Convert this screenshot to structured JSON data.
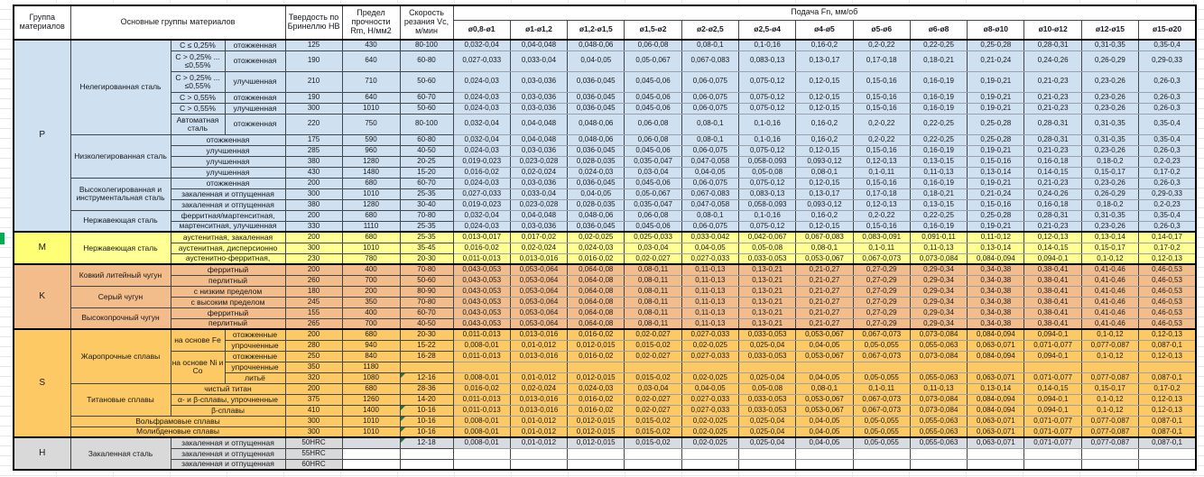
{
  "sheet": {
    "header": {
      "group_col": "Группа материалов",
      "main_col": "Основные группы материалов",
      "hardness_col": "Твердость по Бринеллю НВ",
      "strength_col": "Предел прочности Rm, Н/мм2",
      "speed_col": "Скорость резания Vc, м/мин",
      "feed_title": "Подача Fn, мм/об",
      "diameters": [
        "ø0,8-ø1",
        "ø1-ø1,2",
        "ø1,2-ø1,5",
        "ø1,5-ø2",
        "ø2-ø2,5",
        "ø2,5-ø4",
        "ø4-ø5",
        "ø5-ø6",
        "ø6-ø8",
        "ø8-ø10",
        "ø10-ø12",
        "ø12-ø15",
        "ø15-ø20"
      ]
    },
    "colors": {
      "group_p_fill": "#cfe0f0",
      "group_m_fill": "#ffff94",
      "group_k_fill": "#f3bc8b",
      "group_s_fill": "#fdc964",
      "group_h_label_fill": "#d9d9d9",
      "group_h_row_fill": "#d8dbdf",
      "margin_green_cell": "#00b050",
      "error_indicator": "#1e7145",
      "border": "#000000"
    },
    "feed_series": {
      "A": [
        "0,032-0,04",
        "0,04-0,048",
        "0,048-0,06",
        "0,06-0,08",
        "0,08-0,1",
        "0,1-0,16",
        "0,16-0,2",
        "0,2-0,22",
        "0,22-0,25",
        "0,25-0,28",
        "0,28-0,31",
        "0,31-0,35",
        "0,35-0,4"
      ],
      "B": [
        "0,027-0,033",
        "0,033-0,04",
        "0,04-0,05",
        "0,05-0,067",
        "0,067-0,083",
        "0,083-0,13",
        "0,13-0,17",
        "0,17-0,18",
        "0,18-0,21",
        "0,21-0,24",
        "0,24-0,26",
        "0,26-0,29",
        "0,29-0,33"
      ],
      "C": [
        "0,024-0,03",
        "0,03-0,036",
        "0,036-0,045",
        "0,045-0,06",
        "0,06-0,075",
        "0,075-0,12",
        "0,12-0,15",
        "0,15-0,16",
        "0,16-0,19",
        "0,19-0,21",
        "0,21-0,23",
        "0,23-0,26",
        "0,26-0,3"
      ],
      "D": [
        "0,019-0,023",
        "0,023-0,028",
        "0,028-0,035",
        "0,035-0,047",
        "0,047-0,058",
        "0,058-0,093",
        "0,093-0,12",
        "0,12-0,13",
        "0,13-0,15",
        "0,15-0,16",
        "0,16-0,18",
        "0,18-0,2",
        "0,2-0,23"
      ],
      "E": [
        "0,016-0,02",
        "0,02-0,024",
        "0,024-0,03",
        "0,03-0,04",
        "0,04-0,05",
        "0,05-0,08",
        "0,08-0,1",
        "0,1-0,11",
        "0,11-0,13",
        "0,13-0,14",
        "0,14-0,15",
        "0,15-0,17",
        "0,17-0,2"
      ],
      "F": [
        "0,013-0,017",
        "0,017-0,02",
        "0,02-0,025",
        "0,025-0,033",
        "0,033-0,042",
        "0,042-0,067",
        "0,067-0,083",
        "0,083-0,091",
        "0,091-0,11",
        "0,11-0,12",
        "0,12-0,13",
        "0,13-0,14",
        "0,14-0,17"
      ],
      "G": [
        "0,011-0,013",
        "0,013-0,016",
        "0,016-0,02",
        "0,02-0,027",
        "0,027-0,033",
        "0,033-0,053",
        "0,053-0,067",
        "0,067-0,073",
        "0,073-0,084",
        "0,084-0,094",
        "0,094-0,1",
        "0,1-0,12",
        "0,12-0,13"
      ],
      "CI": [
        "0,043-0,053",
        "0,053-0,064",
        "0,064-0,08",
        "0,08-0,11",
        "0,11-0,13",
        "0,13-0,21",
        "0,21-0,27",
        "0,27-0,29",
        "0,29-0,34",
        "0,34-0,38",
        "0,38-0,41",
        "0,41-0,46",
        "0,46-0,53"
      ],
      "I": [
        "0,008-0,01",
        "0,01-0,012",
        "0,012-0,015",
        "0,015-0,02",
        "0,02-0,025",
        "0,025-0,04",
        "0,04-0,05",
        "0,05-0,055",
        "0,055-0,063",
        "0,063-0,071",
        "0,071-0,077",
        "0,077-0,087",
        "0,087-0,1"
      ],
      "EMPTY": [
        "",
        "",
        "",
        "",
        "",
        "",
        "",
        "",
        "",
        "",
        "",
        "",
        ""
      ]
    },
    "groups": [
      {
        "id": "P",
        "label": "P",
        "sections": [
          {
            "main": "Нелегированная сталь",
            "rows": [
              {
                "sub1": "C ≤ 0,25%",
                "sub2": "отожженная",
                "hb": "125",
                "rm": "430",
                "vc": "80-100",
                "feeds": "A"
              },
              {
                "sub1": "C > 0,25% ... ≤0,55%",
                "sub2": "отожженная",
                "hb": "190",
                "rm": "640",
                "vc": "60-80",
                "feeds": "B",
                "tall": true
              },
              {
                "sub1": "C > 0,25% ... ≤0,55%",
                "sub2": "улучшенная",
                "hb": "210",
                "rm": "710",
                "vc": "50-60",
                "feeds": "C",
                "tall": true
              },
              {
                "sub1": "C > 0,55%",
                "sub2": "отожженная",
                "hb": "190",
                "rm": "640",
                "vc": "60-70",
                "feeds": "C"
              },
              {
                "sub1": "C > 0,55%",
                "sub2": "улучшенная",
                "hb": "300",
                "rm": "1010",
                "vc": "50-60",
                "feeds": "C"
              },
              {
                "sub1": "Автоматная сталь",
                "sub2": "отожженная",
                "hb": "220",
                "rm": "750",
                "vc": "80-100",
                "feeds": "A",
                "tall": true
              }
            ]
          },
          {
            "main": "Низколегированная сталь",
            "rows": [
              {
                "sub": "отожженная",
                "hb": "175",
                "rm": "590",
                "vc": "60-80",
                "feeds": "A"
              },
              {
                "sub": "улучшенная",
                "hb": "285",
                "rm": "960",
                "vc": "40-50",
                "feeds": "C"
              },
              {
                "sub": "улучшенная",
                "hb": "380",
                "rm": "1280",
                "vc": "20-25",
                "feeds": "D"
              },
              {
                "sub": "улучшенная",
                "hb": "430",
                "rm": "1480",
                "vc": "15-20",
                "feeds": "E"
              }
            ]
          },
          {
            "main": "Высоколегированная и инструментальная сталь",
            "rows": [
              {
                "sub": "отожженная",
                "hb": "200",
                "rm": "680",
                "vc": "60-70",
                "feeds": "C"
              },
              {
                "sub": "закаленная и отпущенная",
                "hb": "300",
                "rm": "1010",
                "vc": "25-35",
                "feeds": "B"
              },
              {
                "sub": "закаленная и отпущенная",
                "hb": "380",
                "rm": "1280",
                "vc": "30-40",
                "feeds": "D"
              }
            ]
          },
          {
            "main": "Нержавеющая сталь",
            "rows": [
              {
                "sub": "ферритная/мартенситная,",
                "hb": "200",
                "rm": "680",
                "vc": "70-80",
                "feeds": "A"
              },
              {
                "sub": "мартенситная, улучшенная",
                "hb": "330",
                "rm": "1110",
                "vc": "25-35",
                "feeds": "C"
              }
            ]
          }
        ]
      },
      {
        "id": "M",
        "label": "M",
        "sections": [
          {
            "main": "Нержавеющая сталь",
            "rows": [
              {
                "sub": "аустенитная, закаленная",
                "hb": "200",
                "rm": "680",
                "vc": "25-35",
                "feeds": "F"
              },
              {
                "sub": "аустенитная, дисперсионно",
                "hb": "300",
                "rm": "1010",
                "vc": "35-45",
                "feeds": "E"
              },
              {
                "sub": "аустенитно-ферритная,",
                "hb": "230",
                "rm": "780",
                "vc": "20-30",
                "feeds": "G"
              }
            ]
          }
        ]
      },
      {
        "id": "K",
        "label": "K",
        "sections": [
          {
            "main": "Ковкий литейный чугун",
            "rows": [
              {
                "sub": "ферритный",
                "hb": "200",
                "rm": "400",
                "vc": "70-80",
                "feeds": "CI"
              },
              {
                "sub": "перлитный",
                "hb": "260",
                "rm": "700",
                "vc": "50-60",
                "feeds": "CI"
              }
            ]
          },
          {
            "main": "Серый чугун",
            "rows": [
              {
                "sub": "с низким пределом",
                "hb": "180",
                "rm": "200",
                "vc": "80-90",
                "feeds": "CI"
              },
              {
                "sub": "с высоким пределом",
                "hb": "245",
                "rm": "350",
                "vc": "70-80",
                "feeds": "CI"
              }
            ]
          },
          {
            "main": "Высокопрочный чугун",
            "rows": [
              {
                "sub": "ферритный",
                "hb": "155",
                "rm": "400",
                "vc": "60-70",
                "feeds": "CI"
              },
              {
                "sub": "перлитный",
                "hb": "265",
                "rm": "700",
                "vc": "40-50",
                "feeds": "CI"
              }
            ]
          }
        ]
      },
      {
        "id": "S",
        "label": "S",
        "sections": [
          {
            "main": "Жаропрочные сплавы",
            "rows": [
              {
                "sub1": "на основе Fe",
                "sub1span": 2,
                "sub2": "отожженные",
                "hb": "200",
                "rm": "680",
                "vc": "20-30",
                "feeds": "G"
              },
              {
                "sub2": "упрочненные",
                "hb": "280",
                "rm": "940",
                "vc": "15-22",
                "feeds": "I"
              },
              {
                "sub1": "на основе Ni и Co",
                "sub1span": 3,
                "sub2": "отожженные",
                "hb": "250",
                "rm": "840",
                "vc": "16-28",
                "feeds": "G"
              },
              {
                "sub2": "упрочненные",
                "hb": "350",
                "rm": "1180",
                "vc": "",
                "feeds": "EMPTY"
              },
              {
                "sub2": "литьё",
                "hb": "320",
                "rm": "1080",
                "vc": "12-16",
                "feeds": "I",
                "mark": true
              }
            ]
          },
          {
            "main": "Титановые сплавы",
            "rows": [
              {
                "sub": "чистый титан",
                "hb": "200",
                "rm": "680",
                "vc": "28-36",
                "feeds": "E"
              },
              {
                "sub": "α- и β-сплавы, упрочненные",
                "hb": "375",
                "rm": "1260",
                "vc": "14-20",
                "feeds": "G"
              },
              {
                "sub": "β-сплавы",
                "hb": "410",
                "rm": "1400",
                "vc": "10-16",
                "feeds": "G",
                "mark": true
              }
            ]
          },
          {
            "main": "Вольфрамовые сплавы",
            "fullspan": true,
            "rows": [
              {
                "hb": "300",
                "rm": "1010",
                "vc": "10-16",
                "feeds": "I",
                "mark": true
              }
            ]
          },
          {
            "main": "Молибденовые сплавы",
            "fullspan": true,
            "rows": [
              {
                "hb": "300",
                "rm": "1010",
                "vc": "10-16",
                "feeds": "I",
                "mark": true
              }
            ]
          }
        ]
      },
      {
        "id": "H",
        "label": "H",
        "sections": [
          {
            "main": "Закаленная сталь",
            "rows": [
              {
                "sub": "закаленная и отпущенная",
                "hb": "50HRC",
                "rm": "",
                "vc": "12-18",
                "feeds": "I",
                "mark": true,
                "shade": true
              },
              {
                "sub": "закаленная и отпущенная",
                "hb": "55HRC",
                "rm": "",
                "vc": "",
                "feeds": "EMPTY"
              },
              {
                "sub": "закаленная и отпущенная",
                "hb": "60HRC",
                "rm": "",
                "vc": "",
                "feeds": "EMPTY"
              }
            ]
          }
        ]
      }
    ]
  }
}
